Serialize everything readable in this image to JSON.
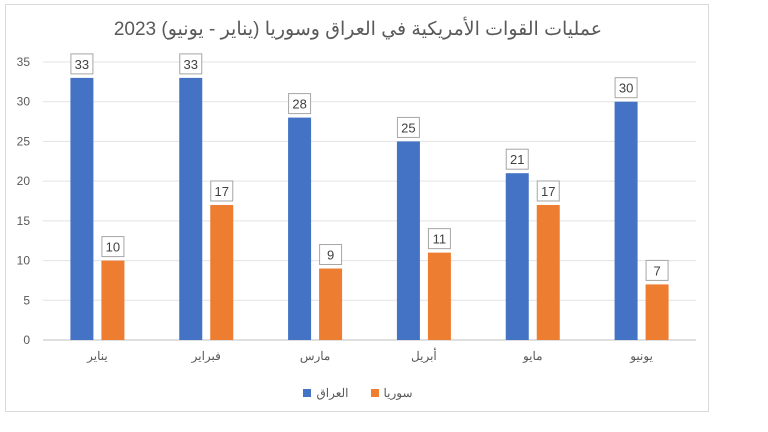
{
  "chart_data": {
    "type": "bar",
    "title": "عمليات القوات الأمريكية في العراق وسوريا (يناير - يونيو) 2023",
    "categories": [
      "يناير",
      "فبراير",
      "مارس",
      "أبريل",
      "مايو",
      "يونيو"
    ],
    "series": [
      {
        "name": "العراق",
        "values": [
          33,
          33,
          28,
          25,
          21,
          30
        ],
        "color": "#4472c4"
      },
      {
        "name": "سوريا",
        "values": [
          10,
          17,
          9,
          11,
          17,
          7
        ],
        "color": "#ed7d31"
      }
    ],
    "yticks": [
      0,
      5,
      10,
      15,
      20,
      25,
      30,
      35
    ],
    "ylim": [
      0,
      35
    ],
    "grid": true,
    "legend_position": "bottom"
  }
}
